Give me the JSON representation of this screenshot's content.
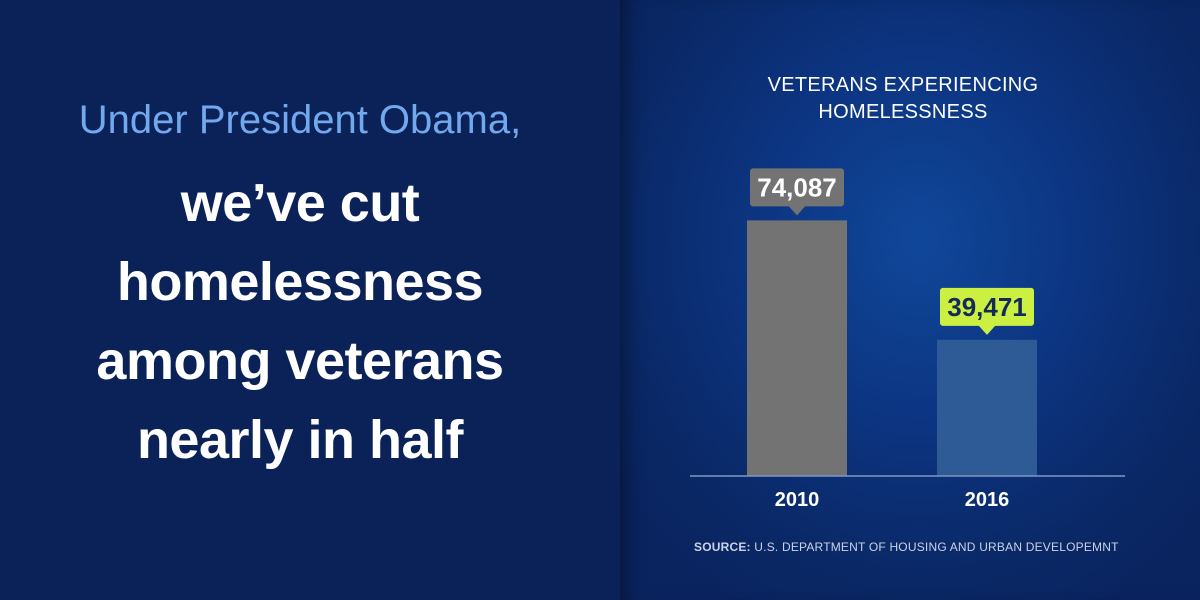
{
  "headline": {
    "intro": "Under President Obama,",
    "lines": [
      "we’ve cut",
      "homelessness",
      "among veterans",
      "nearly in half"
    ]
  },
  "chart_data": {
    "type": "bar",
    "title": "VETERANS EXPERIENCING HOMELESSNESS",
    "title_lines": [
      "VETERANS EXPERIENCING",
      "HOMELESSNESS"
    ],
    "categories": [
      "2010",
      "2016"
    ],
    "values": [
      74087,
      39471
    ],
    "value_labels": [
      "74,087",
      "39,471"
    ],
    "ylim": [
      0,
      100000
    ],
    "grid": false,
    "xlabel": "",
    "ylabel": "",
    "colors": {
      "bars": [
        "#737373",
        "#2e5b96"
      ],
      "label_bg": [
        "#737373",
        "#ccf042"
      ],
      "label_text": [
        "#ffffff",
        "#142a59"
      ],
      "baseline": "#7f97c2",
      "tick_text": "#ffffff"
    }
  },
  "source": {
    "label": "SOURCE:",
    "text": "U.S. DEPARTMENT OF HOUSING AND URBAN DEVELOPEMNT"
  }
}
